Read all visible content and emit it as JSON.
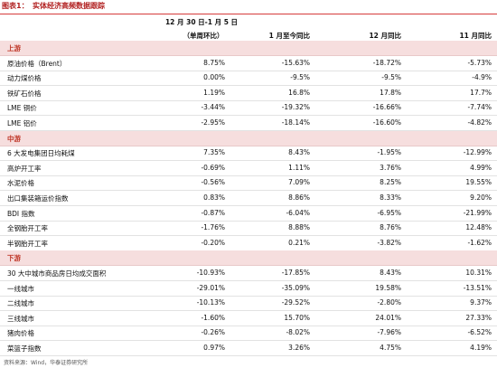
{
  "figure": {
    "number": "图表1：",
    "title": "实体经济高频数据跟踪"
  },
  "header": {
    "period_line1": "12 月 30 日-1 月 5 日",
    "period_line2": "（单周环比）",
    "col2": "1 月至今同比",
    "col3": "12 月同比",
    "col4": "11 月同比"
  },
  "rows": [
    {
      "type": "section",
      "label": "上游"
    },
    {
      "type": "data",
      "label": "原油价格（Brent）",
      "values": [
        "8.75%",
        "-15.63%",
        "-18.72%",
        "-5.73%"
      ]
    },
    {
      "type": "data",
      "label": "动力煤价格",
      "values": [
        "0.00%",
        "-9.5%",
        "-9.5%",
        "-4.9%"
      ]
    },
    {
      "type": "data",
      "label": "铁矿石价格",
      "values": [
        "1.19%",
        "16.8%",
        "17.8%",
        "17.7%"
      ]
    },
    {
      "type": "data",
      "label": "LME 铜价",
      "values": [
        "-3.44%",
        "-19.32%",
        "-16.66%",
        "-7.74%"
      ]
    },
    {
      "type": "data",
      "label": "LME 铝价",
      "values": [
        "-2.95%",
        "-18.14%",
        "-16.60%",
        "-4.82%"
      ]
    },
    {
      "type": "section",
      "label": "中游"
    },
    {
      "type": "data",
      "label": "6 大发电集团日均耗煤",
      "values": [
        "7.35%",
        "8.43%",
        "-1.95%",
        "-12.99%"
      ]
    },
    {
      "type": "data",
      "label": "高炉开工率",
      "values": [
        "-0.69%",
        "1.11%",
        "3.76%",
        "4.99%"
      ]
    },
    {
      "type": "data",
      "label": "水泥价格",
      "values": [
        "-0.56%",
        "7.09%",
        "8.25%",
        "19.55%"
      ]
    },
    {
      "type": "data",
      "label": "出口集装箱运价指数",
      "values": [
        "0.83%",
        "8.86%",
        "8.33%",
        "9.20%"
      ]
    },
    {
      "type": "data",
      "label": "BDI 指数",
      "values": [
        "-0.87%",
        "-6.04%",
        "-6.95%",
        "-21.99%"
      ]
    },
    {
      "type": "data",
      "label": "全钢胎开工率",
      "values": [
        "-1.76%",
        "8.88%",
        "8.76%",
        "12.48%"
      ]
    },
    {
      "type": "data",
      "label": "半钢胎开工率",
      "values": [
        "-0.20%",
        "0.21%",
        "-3.82%",
        "-1.62%"
      ]
    },
    {
      "type": "section",
      "label": "下游"
    },
    {
      "type": "data",
      "label": "30 大中城市商品房日均成交面积",
      "values": [
        "-10.93%",
        "-17.85%",
        "8.43%",
        "10.31%"
      ]
    },
    {
      "type": "data",
      "label": "一线城市",
      "values": [
        "-29.01%",
        "-35.09%",
        "19.58%",
        "-13.51%"
      ]
    },
    {
      "type": "data",
      "label": "二线城市",
      "values": [
        "-10.13%",
        "-29.52%",
        "-2.80%",
        "9.37%"
      ]
    },
    {
      "type": "data",
      "label": "三线城市",
      "values": [
        "-1.60%",
        "15.70%",
        "24.01%",
        "27.33%"
      ]
    },
    {
      "type": "data",
      "label": "猪肉价格",
      "values": [
        "-0.26%",
        "-8.02%",
        "-7.96%",
        "-6.52%"
      ]
    },
    {
      "type": "data",
      "label": "菜篮子指数",
      "values": [
        "0.97%",
        "3.26%",
        "4.75%",
        "4.19%"
      ]
    }
  ],
  "footer": "资料来源：Wind，华泰证券研究所"
}
